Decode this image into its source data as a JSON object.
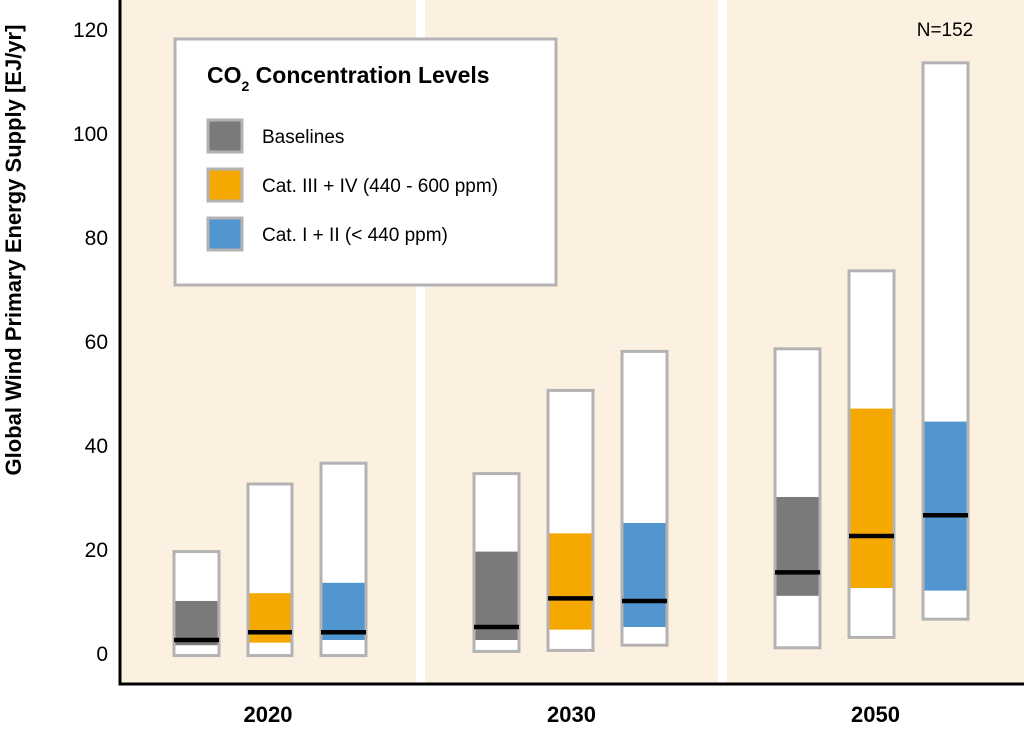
{
  "chart_data": {
    "type": "boxplot",
    "ylabel": "Global Wind Primary Energy Supply [EJ/yr]",
    "ylim": [
      0,
      120
    ],
    "yticks": [
      0,
      20,
      40,
      60,
      80,
      100,
      120
    ],
    "categories": [
      "2020",
      "2030",
      "2050"
    ],
    "annotation": "N=152",
    "legend": {
      "title": "CO",
      "title_sub": "2",
      "title_rest": " Concentration Levels",
      "placement": "top-left",
      "entries": [
        {
          "label": "Baselines",
          "color": "#7a7a7a"
        },
        {
          "label": "Cat. III + IV (440 - 600 ppm)",
          "color": "#f5a800"
        },
        {
          "label": "Cat. I + II (< 440 ppm)",
          "color": "#5196cf"
        }
      ]
    },
    "series": [
      {
        "name": "Baselines",
        "color": "#7a7a7a",
        "values": [
          {
            "min": -0.5,
            "q1": 1.5,
            "median": 2.5,
            "q3": 10,
            "max": 19.5
          },
          {
            "min": 0.3,
            "q1": 2.5,
            "median": 5,
            "q3": 19.5,
            "max": 34.5
          },
          {
            "min": 1,
            "q1": 11,
            "median": 15.5,
            "q3": 30,
            "max": 58.5
          }
        ]
      },
      {
        "name": "Cat. III + IV (440 - 600 ppm)",
        "color": "#f5a800",
        "values": [
          {
            "min": -0.5,
            "q1": 2,
            "median": 4,
            "q3": 11.5,
            "max": 32.5
          },
          {
            "min": 0.5,
            "q1": 4.5,
            "median": 10.5,
            "q3": 23,
            "max": 50.5
          },
          {
            "min": 3,
            "q1": 12.5,
            "median": 22.5,
            "q3": 47,
            "max": 73.5
          }
        ]
      },
      {
        "name": "Cat. I + II (< 440 ppm)",
        "color": "#5196cf",
        "values": [
          {
            "min": -0.5,
            "q1": 2.5,
            "median": 4,
            "q3": 13.5,
            "max": 36.5
          },
          {
            "min": 1.5,
            "q1": 5,
            "median": 10,
            "q3": 25,
            "max": 58
          },
          {
            "min": 6.5,
            "q1": 12,
            "median": 26.5,
            "q3": 44.5,
            "max": 113.5
          }
        ]
      }
    ]
  }
}
